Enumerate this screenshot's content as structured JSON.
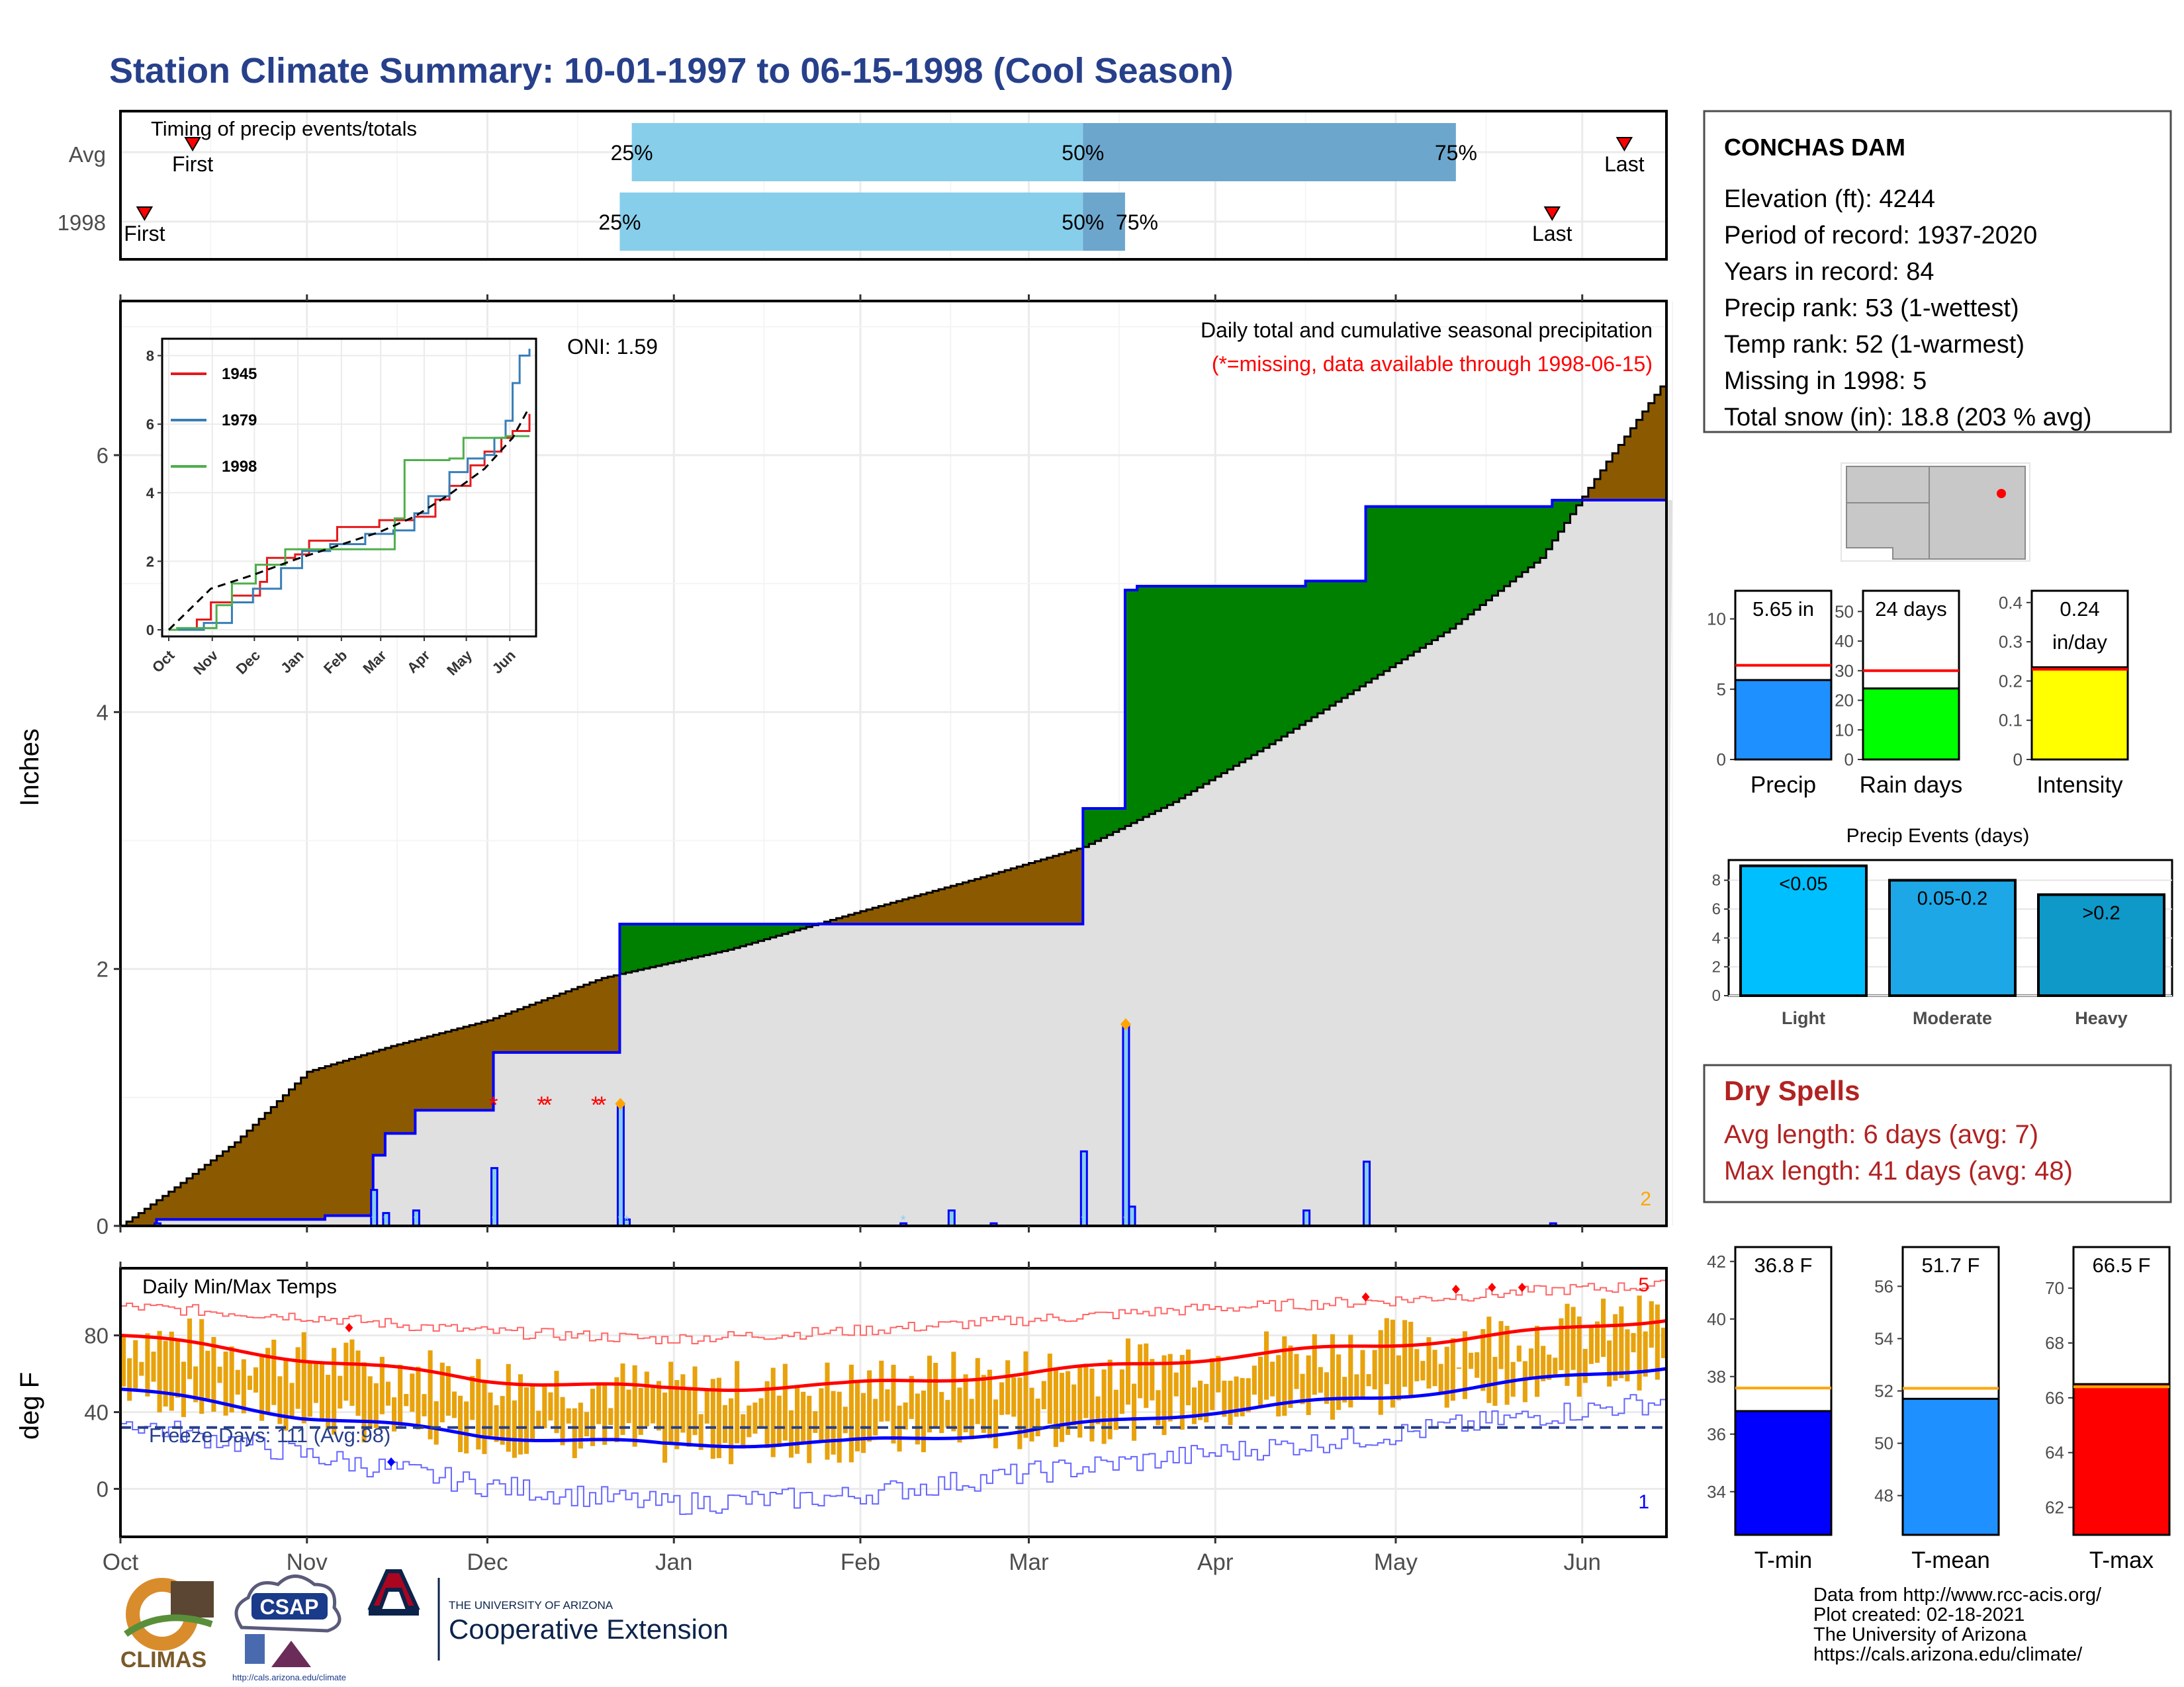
{
  "title": "Station Climate Summary: 10-01-1997 to 06-15-1998 (Cool Season)",
  "timing": {
    "title": "Timing of precip events/totals",
    "rows": [
      {
        "label": "Avg",
        "first_label": "First",
        "last_label": "Last",
        "first": "1997-10-13",
        "last": "1998-06-08",
        "p25": "1997-12-25",
        "p50": "1998-03-10",
        "p75": "1998-05-11",
        "p25_label": "25%",
        "p50_label": "50%",
        "p75_label": "75%"
      },
      {
        "label": "1998",
        "first_label": "First",
        "last_label": "Last",
        "first": "1997-10-05",
        "last": "1998-05-27",
        "p25": "1997-12-23",
        "p50": "1998-03-10",
        "p75": "1998-03-17",
        "p25_label": "25%",
        "p50_label": "50%",
        "p75_label": "75%"
      }
    ]
  },
  "months": [
    "Oct",
    "Nov",
    "Dec",
    "Jan",
    "Feb",
    "Mar",
    "Apr",
    "May",
    "Jun"
  ],
  "inset_months": [
    "Oct",
    "Nov",
    "Dec",
    "Jan",
    "Feb",
    "Mar",
    "Apr",
    "May",
    "Jun"
  ],
  "precip_panel": {
    "ylabel": "Inches",
    "oni": "ONI: 1.59",
    "caption1": "Daily total and cumulative seasonal precipitation",
    "caption2": "(*=missing, data available through 1998-06-15)",
    "corner_count": "2",
    "colors": {
      "above": "#008000",
      "below": "#8B5A00",
      "fill": "#e0e0e0",
      "line": "#0000ff",
      "missing": "#ff0000"
    }
  },
  "temp_panel": {
    "ylabel": "deg F",
    "title": "Daily Min/Max Temps",
    "freeze": "Freeze Days: 111 (Avg:98)",
    "count_top": "5",
    "count_bottom": "1"
  },
  "station": {
    "name": "CONCHAS DAM",
    "lines": [
      "Elevation (ft): 4244",
      "Period of record: 1937-2020",
      "Years in record: 84",
      "Precip rank: 53 (1-wettest)",
      "Temp rank: 52 (1-warmest)",
      "Missing in 1998: 5",
      "Total snow (in): 18.8 (203 % avg)"
    ]
  },
  "dry_spells": {
    "title": "Dry Spells",
    "avg": "Avg length: 6 days (avg: 7)",
    "max": "Max length: 41 days (avg: 48)"
  },
  "precip_events_title": "Precip Events (days)",
  "source": {
    "line1": "Data from http://www.rcc-acis.org/",
    "line2": "Plot created: 02-18-2021",
    "line3": "The University of Arizona",
    "line4": "https://cals.arizona.edu/climate/"
  },
  "logos": {
    "climas": "CLIMAS",
    "csap": "CSAP",
    "csap_url": "http://cals.arizona.edu/climate",
    "ua_small": "THE UNIVERSITY OF ARIZONA",
    "ua_big": "Cooperative Extension"
  },
  "chart_data": [
    {
      "type": "area",
      "title": "Daily total and cumulative seasonal precipitation",
      "ylabel": "Inches",
      "ylim": [
        0,
        7.2
      ],
      "yticks": [
        0,
        2,
        4,
        6
      ],
      "xlim": [
        "1997-10-01",
        "1998-06-15"
      ],
      "series": [
        {
          "name": "cumulative 1998",
          "x": [
            "1997-10-01",
            "1997-10-07",
            "1997-11-04",
            "1997-11-12",
            "1997-11-14",
            "1997-11-19",
            "1997-12-02",
            "1997-12-23",
            "1998-02-23",
            "1998-03-10",
            "1998-03-17",
            "1998-03-19",
            "1998-04-16",
            "1998-04-26",
            "1998-05-27",
            "1998-06-15"
          ],
          "y": [
            0,
            0.05,
            0.08,
            0.55,
            0.72,
            0.9,
            1.35,
            2.35,
            2.35,
            3.25,
            4.95,
            4.98,
            5.02,
            5.6,
            5.65,
            5.65
          ]
        },
        {
          "name": "average cumulative",
          "x": [
            "1997-10-01",
            "1997-10-10",
            "1997-10-20",
            "1997-11-01",
            "1997-11-15",
            "1997-12-01",
            "1997-12-20",
            "1998-01-10",
            "1998-02-01",
            "1998-02-20",
            "1998-03-10",
            "1998-03-25",
            "1998-04-10",
            "1998-04-25",
            "1998-05-10",
            "1998-05-25",
            "1998-06-05",
            "1998-06-15"
          ],
          "y": [
            0,
            0.3,
            0.65,
            1.2,
            1.4,
            1.6,
            1.93,
            2.15,
            2.45,
            2.7,
            2.95,
            3.3,
            3.75,
            4.2,
            4.65,
            5.2,
            5.95,
            6.6
          ]
        },
        {
          "name": "daily precip",
          "x": [
            "1997-10-07",
            "1997-11-12",
            "1997-11-14",
            "1997-11-19",
            "1997-12-02",
            "1997-12-23",
            "1997-12-24",
            "1998-02-08",
            "1998-02-16",
            "1998-02-23",
            "1998-03-10",
            "1998-03-17",
            "1998-03-18",
            "1998-04-16",
            "1998-04-26",
            "1998-05-27"
          ],
          "y": [
            0.02,
            0.28,
            0.1,
            0.12,
            0.45,
            0.95,
            0.05,
            0.02,
            0.12,
            0.02,
            0.58,
            1.57,
            0.15,
            0.12,
            0.5,
            0.02
          ]
        }
      ],
      "missing_days": [
        "1997-12-02",
        "1997-12-10",
        "1997-12-11",
        "1997-12-19",
        "1997-12-20"
      ]
    },
    {
      "type": "line",
      "title": "inset cumulative precipitation",
      "ylim": [
        0,
        8.3
      ],
      "yticks": [
        0,
        2,
        4,
        6,
        8
      ],
      "series": [
        {
          "name": "1945",
          "color": "#e41a1c",
          "x": [
            0,
            20,
            30,
            45,
            65,
            70,
            90,
            100,
            120,
            150,
            160,
            175,
            190,
            200,
            215,
            225,
            237,
            245,
            257
          ],
          "y": [
            0,
            0.3,
            0.8,
            1.0,
            1.4,
            2.1,
            2.2,
            2.6,
            3.0,
            3.2,
            3.2,
            3.3,
            3.8,
            4.2,
            4.8,
            5.2,
            5.6,
            5.8,
            6.3
          ]
        },
        {
          "name": "1979",
          "color": "#377eb8",
          "x": [
            0,
            25,
            45,
            60,
            80,
            95,
            115,
            140,
            160,
            175,
            185,
            200,
            213,
            225,
            232,
            240,
            245,
            250,
            257
          ],
          "y": [
            0,
            0.2,
            0.8,
            1.2,
            1.8,
            2.3,
            2.5,
            2.8,
            2.9,
            3.4,
            3.9,
            4.6,
            5.0,
            5.1,
            5.6,
            6.1,
            7.2,
            8.0,
            8.2
          ]
        },
        {
          "name": "1998",
          "color": "#4daf4a",
          "x": [
            0,
            6,
            34,
            45,
            62,
            83,
            145,
            161,
            168,
            200,
            210,
            240,
            257
          ],
          "y": [
            0,
            0.05,
            0.72,
            1.35,
            1.9,
            2.35,
            2.35,
            3.25,
            4.95,
            5.0,
            5.6,
            5.65,
            5.65
          ]
        },
        {
          "name": "average",
          "color": "#000000",
          "x": [
            0,
            30,
            60,
            90,
            120,
            150,
            175,
            200,
            225,
            245,
            257
          ],
          "y": [
            0,
            1.2,
            1.6,
            2.05,
            2.45,
            2.85,
            3.3,
            3.95,
            4.7,
            5.6,
            6.5
          ]
        }
      ]
    },
    {
      "type": "bar",
      "title": "Daily Min/Max Temps",
      "ylabel": "deg F",
      "ylim": [
        -25,
        115
      ],
      "yticks": [
        0,
        40,
        80
      ],
      "freeze_line": 32,
      "series": [
        {
          "name": "avg max",
          "x": [
            0,
            30,
            60,
            90,
            120,
            150,
            180,
            210,
            240,
            257
          ],
          "y": [
            80,
            68,
            57,
            52,
            54,
            60,
            68,
            75,
            83,
            89
          ]
        },
        {
          "name": "avg min",
          "x": [
            0,
            30,
            60,
            90,
            120,
            150,
            180,
            210,
            240,
            257
          ],
          "y": [
            52,
            38,
            28,
            23,
            24,
            30,
            40,
            48,
            58,
            64
          ]
        },
        {
          "name": "record high",
          "x": [
            0,
            30,
            60,
            90,
            120,
            150,
            180,
            210,
            240,
            257
          ],
          "y": [
            95,
            90,
            82,
            78,
            82,
            88,
            94,
            98,
            104,
            106
          ]
        },
        {
          "name": "record low",
          "x": [
            0,
            30,
            60,
            90,
            120,
            150,
            180,
            210,
            240,
            257
          ],
          "y": [
            35,
            18,
            2,
            -8,
            -4,
            8,
            18,
            28,
            40,
            46
          ]
        }
      ]
    },
    {
      "type": "bar",
      "categories": [
        "Precip"
      ],
      "values": [
        5.65
      ],
      "avg": 6.7,
      "ylim": [
        0,
        12
      ],
      "yticks": [
        0,
        5,
        10
      ],
      "label": "5.65 in"
    },
    {
      "type": "bar",
      "categories": [
        "Rain days"
      ],
      "values": [
        24
      ],
      "avg": 30,
      "ylim": [
        0,
        57
      ],
      "yticks": [
        0,
        10,
        20,
        30,
        40,
        50
      ],
      "label": "24 days"
    },
    {
      "type": "bar",
      "categories": [
        "Intensity"
      ],
      "values": [
        0.235
      ],
      "avg": 0.23,
      "ylim": [
        0,
        0.43
      ],
      "yticks": [
        0.0,
        0.1,
        0.2,
        0.3,
        0.4
      ],
      "label1": "0.24",
      "label2": "in/day"
    },
    {
      "type": "bar",
      "title": "Precip Events (days)",
      "categories": [
        "Light",
        "Moderate",
        "Heavy"
      ],
      "values": [
        9,
        8,
        7
      ],
      "labels": [
        "<0.05",
        "0.05-0.2",
        ">0.2"
      ],
      "ylim": [
        0,
        9.4
      ],
      "yticks": [
        0,
        2,
        4,
        6,
        8
      ]
    },
    {
      "type": "bar",
      "categories": [
        "T-min"
      ],
      "values": [
        36.8
      ],
      "avg": 37.6,
      "ylim": [
        32.5,
        42.5
      ],
      "yticks": [
        34,
        36,
        38,
        40,
        42
      ],
      "label": "36.8 F"
    },
    {
      "type": "bar",
      "categories": [
        "T-mean"
      ],
      "values": [
        51.7
      ],
      "avg": 52.1,
      "ylim": [
        46.5,
        57.5
      ],
      "yticks": [
        48,
        50,
        52,
        54,
        56
      ],
      "label": "51.7 F"
    },
    {
      "type": "bar",
      "categories": [
        "T-max"
      ],
      "values": [
        66.5
      ],
      "avg": 66.4,
      "ylim": [
        61,
        71.5
      ],
      "yticks": [
        62,
        64,
        66,
        68,
        70
      ],
      "label": "66.5 F"
    }
  ]
}
